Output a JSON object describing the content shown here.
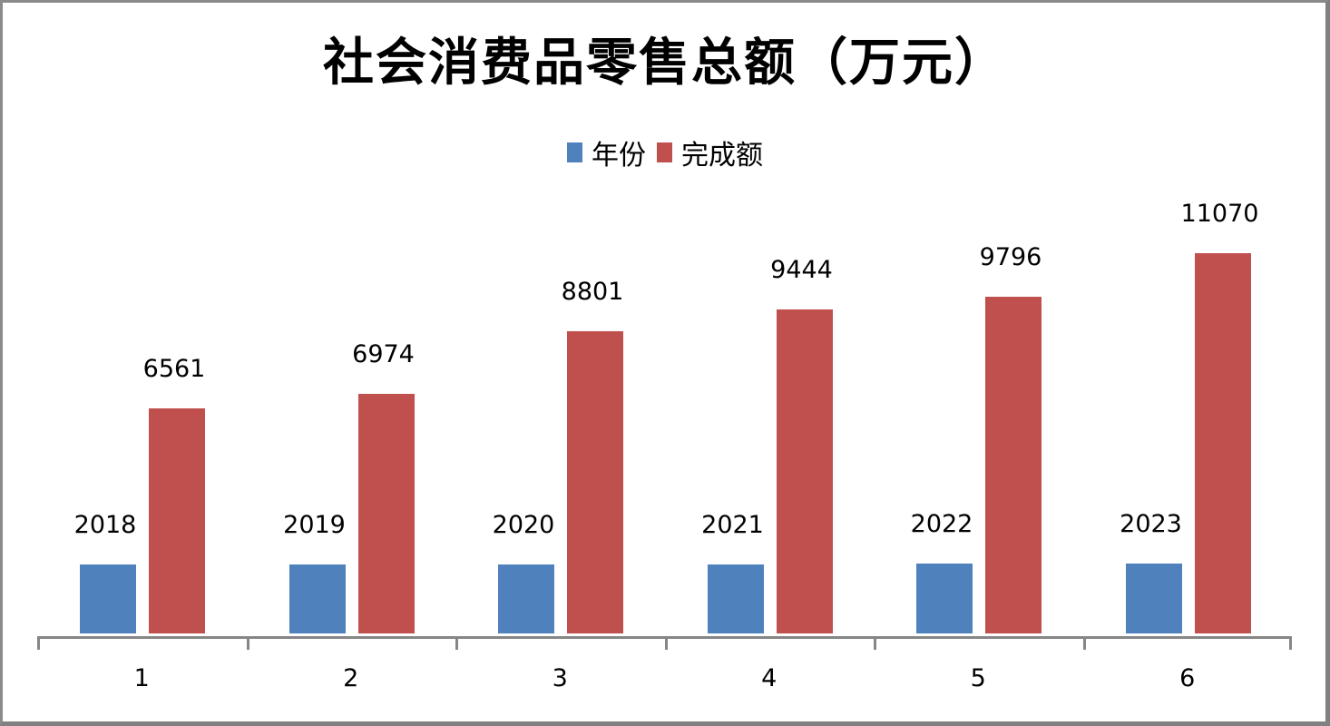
{
  "chart_data": {
    "type": "bar",
    "title": "社会消费品零售总额（万元）",
    "categories": [
      "1",
      "2",
      "3",
      "4",
      "5",
      "6"
    ],
    "series": [
      {
        "name": "年份",
        "color": "#4f81bd",
        "values": [
          2018,
          2019,
          2020,
          2021,
          2022,
          2023
        ]
      },
      {
        "name": "完成额",
        "color": "#c0504d",
        "values": [
          6561,
          6974,
          8801,
          9444,
          9796,
          11070
        ]
      }
    ],
    "xlabel": "",
    "ylabel": "",
    "ylim": [
      0,
      12000
    ],
    "grid": false,
    "legend_position": "top",
    "data_labels": true
  },
  "labels": {
    "title": "社会消费品零售总额（万元）",
    "legend": [
      "年份",
      "完成额"
    ],
    "x_ticks": [
      "1",
      "2",
      "3",
      "4",
      "5",
      "6"
    ],
    "year_values": [
      "2018",
      "2019",
      "2020",
      "2021",
      "2022",
      "2023"
    ],
    "amount_values": [
      "6561",
      "6974",
      "8801",
      "9444",
      "9796",
      "11070"
    ]
  }
}
